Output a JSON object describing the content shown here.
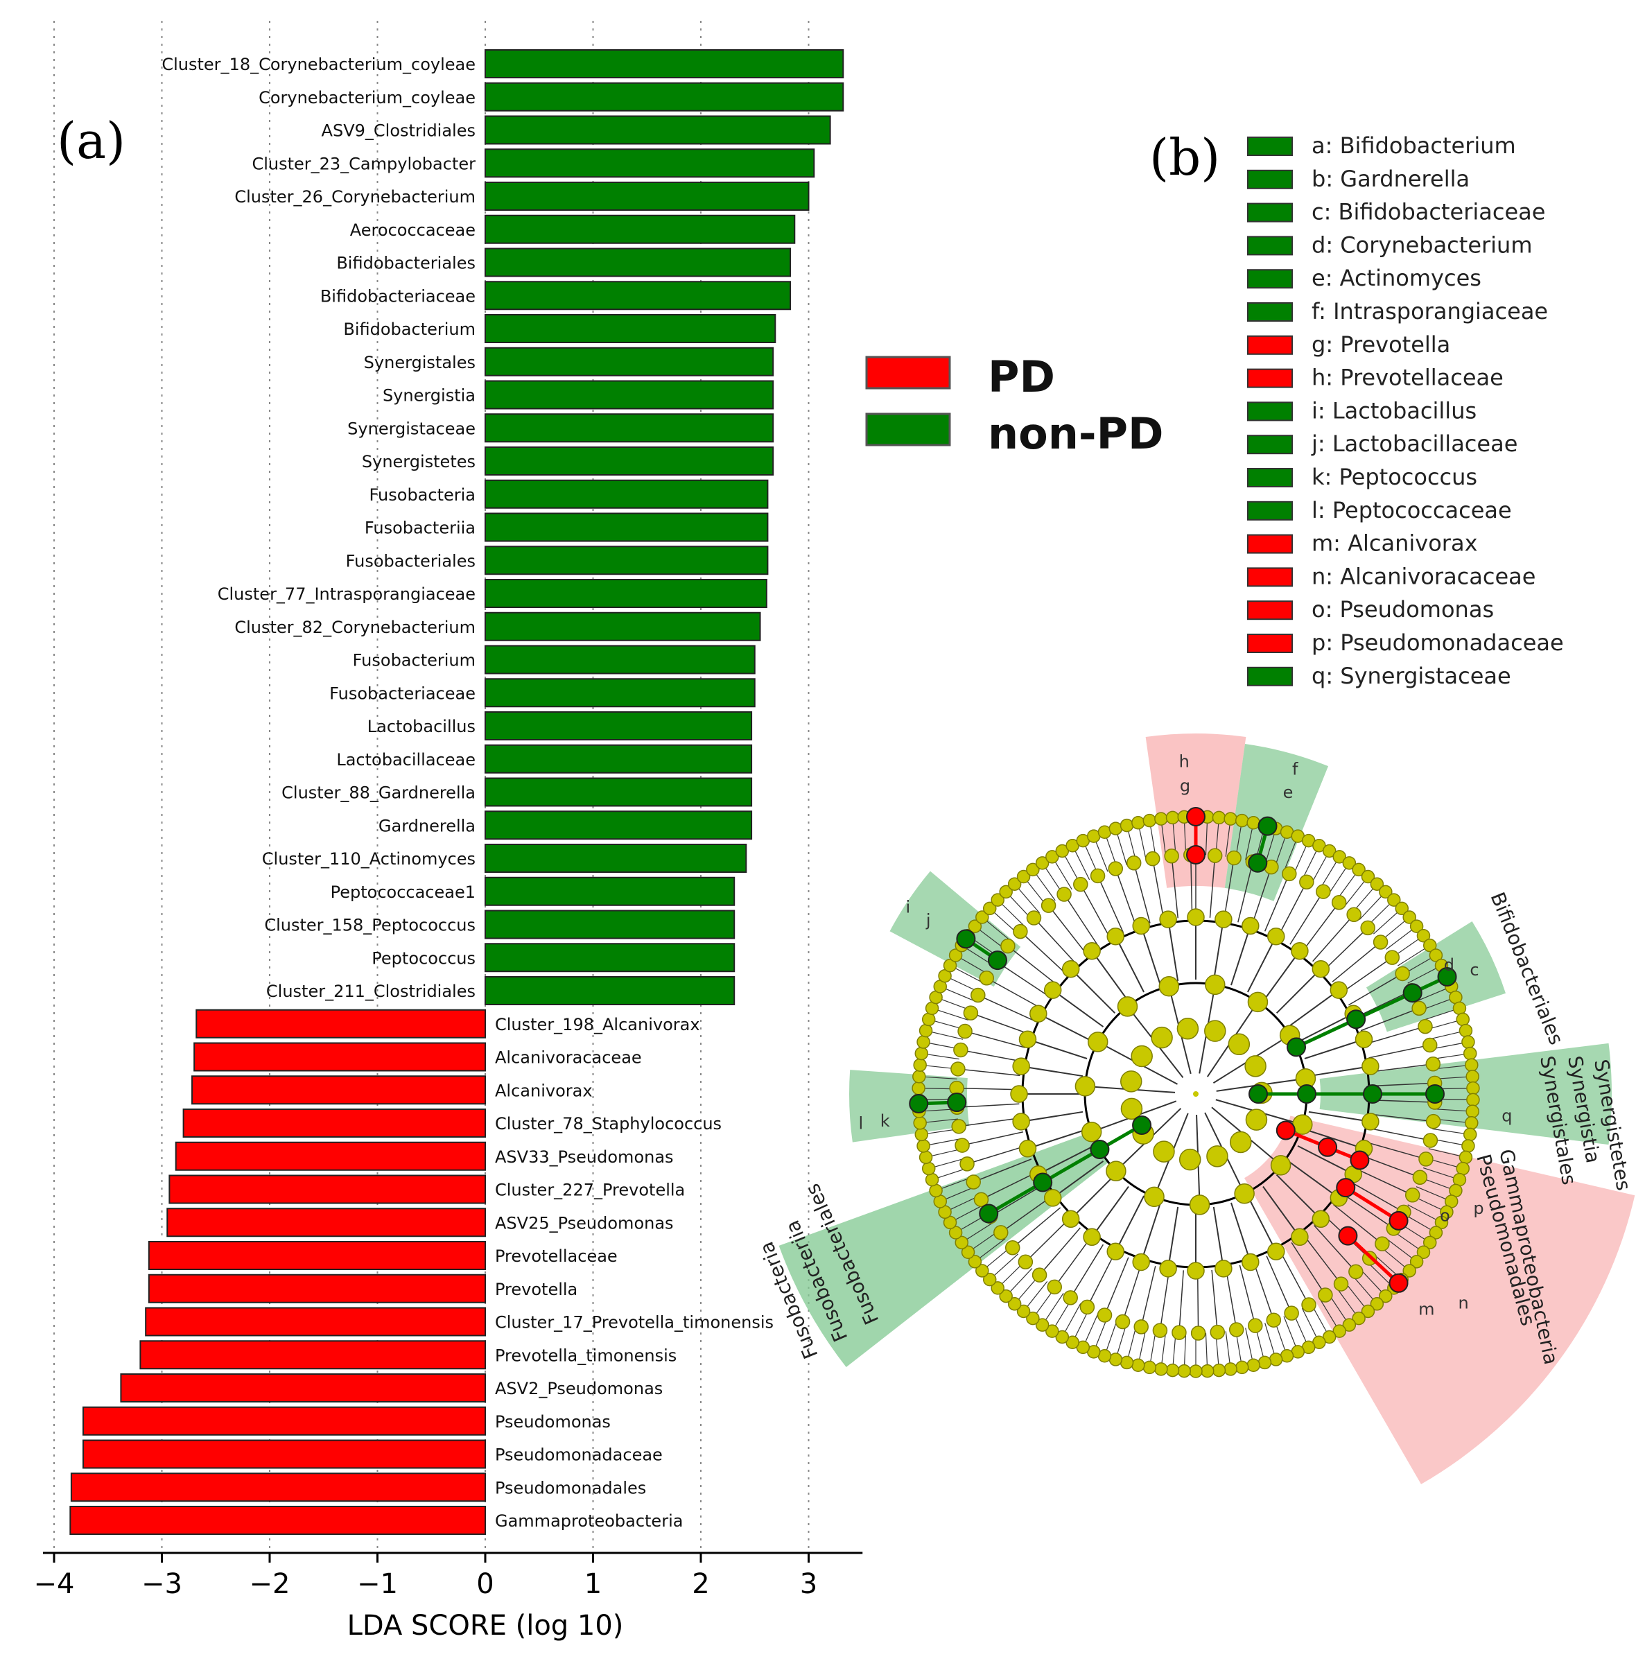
{
  "panel_a_label": "(a)",
  "panel_b_label": "(b)",
  "colors": {
    "PD": "#ff0000",
    "non-PD": "#008000",
    "node": "#c8c800",
    "node_stroke": "#808000",
    "pd_shade": "#f8b0b0",
    "nonpd_shade": "#80c890"
  },
  "legend_a": [
    {
      "label": "PD",
      "color": "#ff0000"
    },
    {
      "label": "non-PD",
      "color": "#008000"
    }
  ],
  "chart_data": [
    {
      "type": "bar",
      "orientation": "horizontal",
      "xlabel": "LDA SCORE (log 10)",
      "xticks": [
        "−4",
        "−3",
        "−2",
        "−1",
        "0",
        "1",
        "2",
        "3"
      ],
      "xtick_values": [
        -4,
        -3,
        -2,
        -1,
        0,
        1,
        2,
        3
      ],
      "xlim": [
        -4.15,
        3.5
      ],
      "grid": "vertical-dotted",
      "series": [
        {
          "name": "PD"
        },
        {
          "name": "non-PD"
        }
      ],
      "bars": [
        {
          "label": "Cluster_18_Corynebacterium_coyleae",
          "value": 3.32,
          "group": "non-PD"
        },
        {
          "label": "Corynebacterium_coyleae",
          "value": 3.32,
          "group": "non-PD"
        },
        {
          "label": "ASV9_Clostridiales",
          "value": 3.2,
          "group": "non-PD"
        },
        {
          "label": "Cluster_23_Campylobacter",
          "value": 3.05,
          "group": "non-PD"
        },
        {
          "label": "Cluster_26_Corynebacterium",
          "value": 3.0,
          "group": "non-PD"
        },
        {
          "label": "Aerococcaceae",
          "value": 2.87,
          "group": "non-PD"
        },
        {
          "label": "Bifidobacteriales",
          "value": 2.83,
          "group": "non-PD"
        },
        {
          "label": "Bifidobacteriaceae",
          "value": 2.83,
          "group": "non-PD"
        },
        {
          "label": "Bifidobacterium",
          "value": 2.69,
          "group": "non-PD"
        },
        {
          "label": "Synergistales",
          "value": 2.67,
          "group": "non-PD"
        },
        {
          "label": "Synergistia",
          "value": 2.67,
          "group": "non-PD"
        },
        {
          "label": "Synergistaceae",
          "value": 2.67,
          "group": "non-PD"
        },
        {
          "label": "Synergistetes",
          "value": 2.67,
          "group": "non-PD"
        },
        {
          "label": "Fusobacteria",
          "value": 2.62,
          "group": "non-PD"
        },
        {
          "label": "Fusobacteriia",
          "value": 2.62,
          "group": "non-PD"
        },
        {
          "label": "Fusobacteriales",
          "value": 2.62,
          "group": "non-PD"
        },
        {
          "label": "Cluster_77_Intrasporangiaceae",
          "value": 2.61,
          "group": "non-PD"
        },
        {
          "label": "Cluster_82_Corynebacterium",
          "value": 2.55,
          "group": "non-PD"
        },
        {
          "label": "Fusobacterium",
          "value": 2.5,
          "group": "non-PD"
        },
        {
          "label": "Fusobacteriaceae",
          "value": 2.5,
          "group": "non-PD"
        },
        {
          "label": "Lactobacillus",
          "value": 2.47,
          "group": "non-PD"
        },
        {
          "label": "Lactobacillaceae",
          "value": 2.47,
          "group": "non-PD"
        },
        {
          "label": "Cluster_88_Gardnerella",
          "value": 2.47,
          "group": "non-PD"
        },
        {
          "label": "Gardnerella",
          "value": 2.47,
          "group": "non-PD"
        },
        {
          "label": "Cluster_110_Actinomyces",
          "value": 2.42,
          "group": "non-PD"
        },
        {
          "label": "Peptococcaceae1",
          "value": 2.31,
          "group": "non-PD"
        },
        {
          "label": "Cluster_158_Peptococcus",
          "value": 2.31,
          "group": "non-PD"
        },
        {
          "label": "Peptococcus",
          "value": 2.31,
          "group": "non-PD"
        },
        {
          "label": "Cluster_211_Clostridiales",
          "value": 2.31,
          "group": "non-PD"
        },
        {
          "label": "Cluster_198_Alcanivorax",
          "value": -2.68,
          "group": "PD"
        },
        {
          "label": "Alcanivoracaceae",
          "value": -2.7,
          "group": "PD"
        },
        {
          "label": "Alcanivorax",
          "value": -2.72,
          "group": "PD"
        },
        {
          "label": "Cluster_78_Staphylococcus",
          "value": -2.8,
          "group": "PD"
        },
        {
          "label": "ASV33_Pseudomonas",
          "value": -2.87,
          "group": "PD"
        },
        {
          "label": "Cluster_227_Prevotella",
          "value": -2.93,
          "group": "PD"
        },
        {
          "label": "ASV25_Pseudomonas",
          "value": -2.95,
          "group": "PD"
        },
        {
          "label": "Prevotellaceae",
          "value": -3.12,
          "group": "PD"
        },
        {
          "label": "Prevotella",
          "value": -3.12,
          "group": "PD"
        },
        {
          "label": "Cluster_17_Prevotella_timonensis",
          "value": -3.15,
          "group": "PD"
        },
        {
          "label": "Prevotella_timonensis",
          "value": -3.2,
          "group": "PD"
        },
        {
          "label": "ASV2_Pseudomonas",
          "value": -3.38,
          "group": "PD"
        },
        {
          "label": "Pseudomonas",
          "value": -3.73,
          "group": "PD"
        },
        {
          "label": "Pseudomonadaceae",
          "value": -3.73,
          "group": "PD"
        },
        {
          "label": "Pseudomonadales",
          "value": -3.84,
          "group": "PD"
        },
        {
          "label": "Gammaproteobacteria",
          "value": -3.85,
          "group": "PD"
        }
      ]
    },
    {
      "type": "cladogram",
      "legend": [
        {
          "key": "a",
          "label": "a: Bifidobacterium",
          "group": "non-PD"
        },
        {
          "key": "b",
          "label": "b: Gardnerella",
          "group": "non-PD"
        },
        {
          "key": "c",
          "label": "c: Bifidobacteriaceae",
          "group": "non-PD"
        },
        {
          "key": "d",
          "label": "d: Corynebacterium",
          "group": "non-PD"
        },
        {
          "key": "e",
          "label": "e: Actinomyces",
          "group": "non-PD"
        },
        {
          "key": "f",
          "label": "f: Intrasporangiaceae",
          "group": "non-PD"
        },
        {
          "key": "g",
          "label": "g: Prevotella",
          "group": "PD"
        },
        {
          "key": "h",
          "label": "h: Prevotellaceae",
          "group": "PD"
        },
        {
          "key": "i",
          "label": "i: Lactobacillus",
          "group": "non-PD"
        },
        {
          "key": "j",
          "label": "j: Lactobacillaceae",
          "group": "non-PD"
        },
        {
          "key": "k",
          "label": "k: Peptococcus",
          "group": "non-PD"
        },
        {
          "key": "l",
          "label": "l: Peptococcaceae",
          "group": "non-PD"
        },
        {
          "key": "m",
          "label": "m: Alcanivorax",
          "group": "PD"
        },
        {
          "key": "n",
          "label": "n: Alcanivoracaceae",
          "group": "PD"
        },
        {
          "key": "o",
          "label": "o: Pseudomonas",
          "group": "PD"
        },
        {
          "key": "p",
          "label": "p: Pseudomonadaceae",
          "group": "PD"
        },
        {
          "key": "q",
          "label": "q: Synergistaceae",
          "group": "non-PD"
        }
      ],
      "clade_labels": [
        {
          "text": "Bifidobacteriales",
          "group": "non-PD"
        },
        {
          "text": "Synergistetes",
          "group": "non-PD"
        },
        {
          "text": "Synergistia",
          "group": "non-PD"
        },
        {
          "text": "Synergistales",
          "group": "non-PD"
        },
        {
          "text": "Gammaproteobacteria",
          "group": "PD"
        },
        {
          "text": "Pseudomonadales",
          "group": "PD"
        },
        {
          "text": "Fusobacteria",
          "group": "non-PD"
        },
        {
          "text": "Fusobacteriia",
          "group": "non-PD"
        },
        {
          "text": "Fusobacteriales",
          "group": "non-PD"
        }
      ]
    }
  ]
}
